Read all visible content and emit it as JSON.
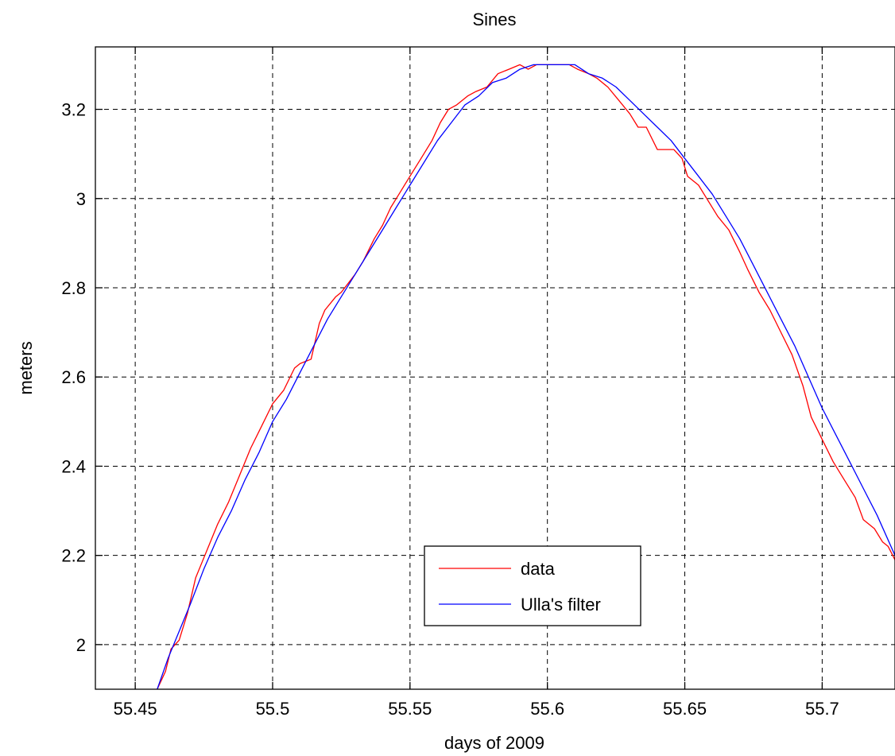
{
  "chart_data": {
    "type": "line",
    "title": "Sines",
    "xlabel": "days of 2009",
    "ylabel": "meters",
    "xlim": [
      55.4355,
      55.7265
    ],
    "ylim": [
      1.9,
      3.34
    ],
    "xticks": [
      55.45,
      55.5,
      55.55,
      55.6,
      55.65,
      55.7
    ],
    "xtick_labels": [
      "55.45",
      "55.5",
      "55.55",
      "55.6",
      "55.65",
      "55.7"
    ],
    "yticks": [
      2.0,
      2.2,
      2.4,
      2.6,
      2.8,
      3.0,
      3.2
    ],
    "ytick_labels": [
      "2",
      "2.2",
      "2.4",
      "2.6",
      "2.8",
      "3",
      "3.2"
    ],
    "grid": true,
    "legend_position": "bottom-center",
    "series": [
      {
        "name": "data",
        "color": "#ff0000",
        "x": [
          55.458,
          55.461,
          55.463,
          55.466,
          55.469,
          55.472,
          55.476,
          55.48,
          55.484,
          55.488,
          55.492,
          55.496,
          55.5,
          55.504,
          55.508,
          55.51,
          55.514,
          55.517,
          55.519,
          55.523,
          55.525,
          55.53,
          55.533,
          55.537,
          55.54,
          55.543,
          55.546,
          55.55,
          55.554,
          55.558,
          55.561,
          55.564,
          55.567,
          55.571,
          55.574,
          55.578,
          55.582,
          55.586,
          55.59,
          55.593,
          55.596,
          55.599,
          55.602,
          55.605,
          55.608,
          55.611,
          55.615,
          55.618,
          55.622,
          55.626,
          55.63,
          55.633,
          55.636,
          55.64,
          55.643,
          55.646,
          55.649,
          55.651,
          55.655,
          55.658,
          55.662,
          55.666,
          55.67,
          55.673,
          55.677,
          55.681,
          55.685,
          55.689,
          55.693,
          55.696,
          55.7,
          55.704,
          55.708,
          55.712,
          55.715,
          55.719,
          55.722,
          55.724,
          55.7265
        ],
        "y": [
          1.9,
          1.94,
          1.99,
          2.01,
          2.07,
          2.15,
          2.21,
          2.27,
          2.32,
          2.38,
          2.44,
          2.49,
          2.54,
          2.57,
          2.62,
          2.63,
          2.64,
          2.72,
          2.75,
          2.78,
          2.79,
          2.83,
          2.86,
          2.91,
          2.94,
          2.98,
          3.01,
          3.05,
          3.09,
          3.13,
          3.17,
          3.2,
          3.21,
          3.23,
          3.24,
          3.25,
          3.28,
          3.29,
          3.3,
          3.29,
          3.3,
          3.3,
          3.3,
          3.3,
          3.3,
          3.29,
          3.28,
          3.27,
          3.25,
          3.22,
          3.19,
          3.16,
          3.16,
          3.11,
          3.11,
          3.11,
          3.09,
          3.05,
          3.03,
          3.0,
          2.96,
          2.93,
          2.88,
          2.84,
          2.79,
          2.75,
          2.7,
          2.65,
          2.58,
          2.51,
          2.46,
          2.41,
          2.37,
          2.33,
          2.28,
          2.26,
          2.23,
          2.22,
          2.19
        ]
      },
      {
        "name": "Ulla's filter",
        "color": "#0000ff",
        "x": [
          55.458,
          55.462,
          55.466,
          55.47,
          55.475,
          55.48,
          55.485,
          55.49,
          55.495,
          55.5,
          55.505,
          55.51,
          55.515,
          55.52,
          55.525,
          55.53,
          55.535,
          55.54,
          55.545,
          55.55,
          55.555,
          55.56,
          55.565,
          55.57,
          55.575,
          55.58,
          55.585,
          55.59,
          55.595,
          55.6,
          55.605,
          55.61,
          55.615,
          55.62,
          55.625,
          55.63,
          55.635,
          55.64,
          55.645,
          55.65,
          55.655,
          55.66,
          55.665,
          55.67,
          55.675,
          55.68,
          55.685,
          55.69,
          55.695,
          55.7,
          55.705,
          55.71,
          55.715,
          55.72,
          55.7265
        ],
        "y": [
          1.9,
          1.97,
          2.03,
          2.09,
          2.17,
          2.24,
          2.3,
          2.37,
          2.43,
          2.5,
          2.55,
          2.61,
          2.67,
          2.73,
          2.78,
          2.83,
          2.88,
          2.93,
          2.98,
          3.03,
          3.08,
          3.13,
          3.17,
          3.21,
          3.23,
          3.26,
          3.27,
          3.29,
          3.3,
          3.3,
          3.3,
          3.3,
          3.28,
          3.27,
          3.25,
          3.22,
          3.19,
          3.16,
          3.13,
          3.09,
          3.05,
          3.01,
          2.96,
          2.91,
          2.85,
          2.79,
          2.73,
          2.67,
          2.6,
          2.53,
          2.47,
          2.41,
          2.35,
          2.29,
          2.2
        ]
      }
    ]
  }
}
